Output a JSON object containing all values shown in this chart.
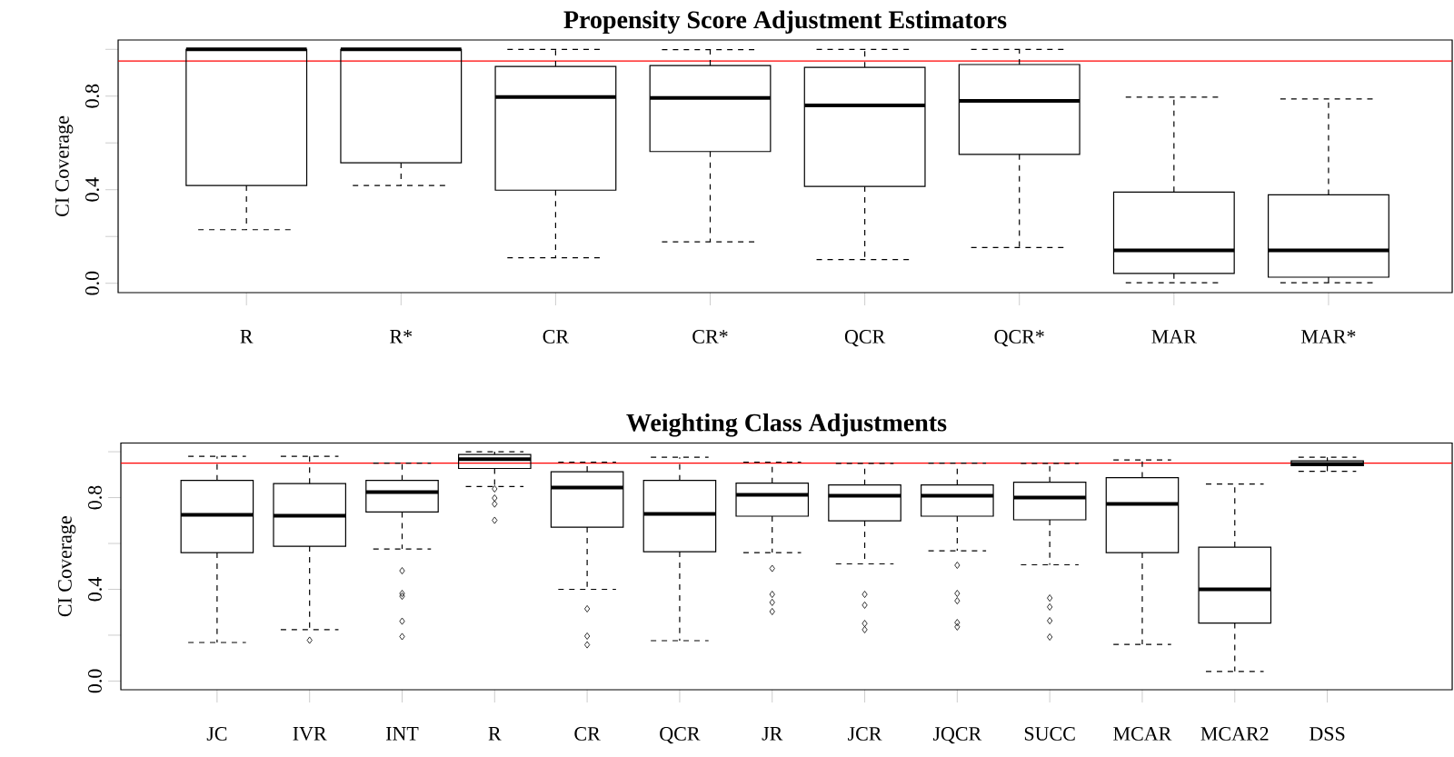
{
  "chart_data": [
    {
      "type": "box",
      "title": "Propensity Score Adjustment Estimators",
      "ylabel": "CI Coverage",
      "categories": [
        "R",
        "R*",
        "CR",
        "CR*",
        "QCR",
        "QCR*",
        "MAR",
        "MAR*"
      ],
      "boxes": [
        {
          "low": 0.229,
          "q1": 0.418,
          "median": 1.0,
          "q3": 1.0,
          "high": 1.0
        },
        {
          "low": 0.418,
          "q1": 0.515,
          "median": 1.0,
          "q3": 1.0,
          "high": 1.0
        },
        {
          "low": 0.109,
          "q1": 0.398,
          "median": 0.796,
          "q3": 0.927,
          "high": 1.0
        },
        {
          "low": 0.177,
          "q1": 0.563,
          "median": 0.792,
          "q3": 0.931,
          "high": 0.999
        },
        {
          "low": 0.101,
          "q1": 0.414,
          "median": 0.76,
          "q3": 0.923,
          "high": 1.0
        },
        {
          "low": 0.153,
          "q1": 0.551,
          "median": 0.78,
          "q3": 0.935,
          "high": 1.0
        },
        {
          "low": 0.002,
          "q1": 0.042,
          "median": 0.141,
          "q3": 0.39,
          "high": 0.796
        },
        {
          "low": 0.002,
          "q1": 0.026,
          "median": 0.141,
          "q3": 0.378,
          "high": 0.788
        }
      ],
      "ylim": [
        -0.04,
        1.04
      ],
      "yticks": [
        {
          "value": 0,
          "label": "0.0"
        },
        {
          "value": 0.2,
          "label": null
        },
        {
          "value": 0.4,
          "label": "0.4"
        },
        {
          "value": 0.6,
          "label": null
        },
        {
          "value": 0.8,
          "label": "0.8"
        },
        {
          "value": 1.0,
          "label": null
        }
      ],
      "ref_lines": [
        {
          "axis": "y",
          "value": 0.95,
          "color": "#ff0000"
        }
      ]
    },
    {
      "type": "box",
      "title": "Weighting Class Adjustments",
      "ylabel": "CI Coverage",
      "marker": "diamond",
      "categories": [
        "JC",
        "IVR",
        "INT",
        "R",
        "CR",
        "QCR",
        "JR",
        "JCR",
        "JQCR",
        "SUCC",
        "MCAR",
        "MCAR2",
        "DSS"
      ],
      "boxes": [
        {
          "low": 0.168,
          "q1": 0.56,
          "median": 0.725,
          "q3": 0.875,
          "high": 0.98
        },
        {
          "low": 0.224,
          "q1": 0.588,
          "median": 0.721,
          "q3": 0.861,
          "high": 0.98,
          "outliers": [
            0.178
          ]
        },
        {
          "low": 0.576,
          "q1": 0.737,
          "median": 0.824,
          "q3": 0.875,
          "high": 0.95,
          "outliers": [
            0.481,
            0.382,
            0.37,
            0.261,
            0.194
          ]
        },
        {
          "low": 0.848,
          "q1": 0.927,
          "median": 0.968,
          "q3": 0.988,
          "high": 1.0,
          "outliers": [
            0.838,
            0.798,
            0.772,
            0.701
          ]
        },
        {
          "low": 0.4,
          "q1": 0.671,
          "median": 0.844,
          "q3": 0.913,
          "high": 0.954,
          "outliers": [
            0.315,
            0.196,
            0.158
          ]
        },
        {
          "low": 0.176,
          "q1": 0.564,
          "median": 0.729,
          "q3": 0.875,
          "high": 0.976
        },
        {
          "low": 0.56,
          "q1": 0.719,
          "median": 0.812,
          "q3": 0.863,
          "high": 0.954,
          "outliers": [
            0.491,
            0.378,
            0.343,
            0.303
          ]
        },
        {
          "low": 0.511,
          "q1": 0.699,
          "median": 0.808,
          "q3": 0.855,
          "high": 0.949,
          "outliers": [
            0.378,
            0.331,
            0.251,
            0.224
          ]
        },
        {
          "low": 0.568,
          "q1": 0.719,
          "median": 0.808,
          "q3": 0.855,
          "high": 0.95,
          "outliers": [
            0.505,
            0.382,
            0.35,
            0.255,
            0.236
          ]
        },
        {
          "low": 0.507,
          "q1": 0.703,
          "median": 0.8,
          "q3": 0.867,
          "high": 0.949,
          "outliers": [
            0.362,
            0.323,
            0.263,
            0.192
          ]
        },
        {
          "low": 0.16,
          "q1": 0.56,
          "median": 0.772,
          "q3": 0.887,
          "high": 0.964
        },
        {
          "low": 0.042,
          "q1": 0.253,
          "median": 0.4,
          "q3": 0.584,
          "high": 0.859
        },
        {
          "low": 0.915,
          "q1": 0.939,
          "median": 0.947,
          "q3": 0.96,
          "high": 0.976
        }
      ],
      "ylim": [
        -0.038,
        1.038
      ],
      "yticks": [
        {
          "value": 0,
          "label": "0.0"
        },
        {
          "value": 0.2,
          "label": null
        },
        {
          "value": 0.4,
          "label": "0.4"
        },
        {
          "value": 0.6,
          "label": null
        },
        {
          "value": 0.8,
          "label": "0.8"
        },
        {
          "value": 1.0,
          "label": null
        }
      ],
      "ref_lines": [
        {
          "axis": "y",
          "value": 0.95,
          "color": "#ff0000"
        }
      ]
    }
  ]
}
